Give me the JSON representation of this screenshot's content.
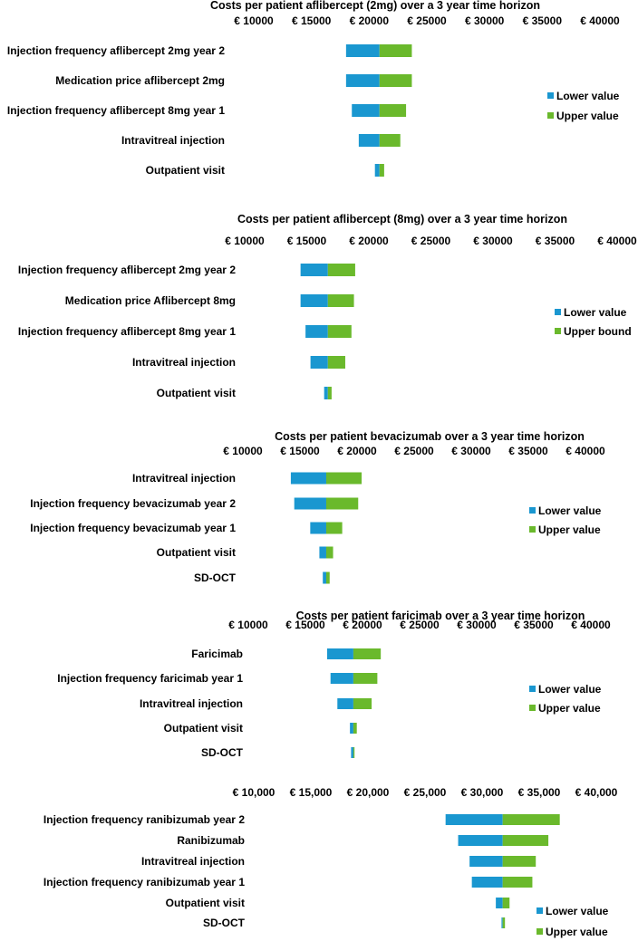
{
  "colors": {
    "lower": "#1a97d0",
    "upper": "#6ab92c",
    "text": "#000000"
  },
  "chart_data": [
    {
      "type": "bar",
      "subtype": "tornado",
      "title": "Costs per patient aflibercept (2mg) over a 3 year time horizon",
      "xlabel": "",
      "ylabel": "",
      "axis_position": "top",
      "xlim": [
        10000,
        40000
      ],
      "ticks": [
        10000,
        15000,
        20000,
        25000,
        30000,
        35000,
        40000
      ],
      "tick_labels": [
        "€ 10000",
        "€ 15000",
        "€ 20000",
        "€ 25000",
        "€ 30000",
        "€ 35000",
        "€ 40000"
      ],
      "base_value": 20900,
      "categories": [
        "Injection frequency aflibercept 2mg year 2",
        "Medication price aflibercept 2mg",
        "Injection frequency aflibercept 8mg year 1",
        "Intravitreal injection",
        "Outpatient visit"
      ],
      "series": [
        {
          "name": "Lower value",
          "values": [
            18000,
            18000,
            18500,
            19100,
            20500
          ]
        },
        {
          "name": "Upper value",
          "values": [
            23700,
            23700,
            23200,
            22700,
            21300
          ]
        }
      ],
      "legend": [
        "Lower value",
        "Upper value"
      ],
      "legend_position": "right"
    },
    {
      "type": "bar",
      "subtype": "tornado",
      "title": "Costs per patient aflibercept (8mg) over a 3 year time horizon",
      "xlabel": "",
      "ylabel": "",
      "axis_position": "top",
      "xlim": [
        10000,
        40000
      ],
      "ticks": [
        10000,
        15000,
        20000,
        25000,
        30000,
        35000,
        40000
      ],
      "tick_labels": [
        "€ 10000",
        "€ 15000",
        "€ 20000",
        "€ 25000",
        "€ 30000",
        "€ 35000",
        "€ 40000"
      ],
      "base_value": 16700,
      "categories": [
        "Injection frequency aflibercept 2mg year 2",
        "Medication price Aflibercept 8mg",
        "Injection frequency aflibercept 8mg year 1",
        "Intravitreal injection",
        "Outpatient visit"
      ],
      "series": [
        {
          "name": "Lower value",
          "values": [
            14500,
            14500,
            14900,
            15300,
            16400
          ]
        },
        {
          "name": "Upper bound",
          "values": [
            18900,
            18800,
            18600,
            18100,
            17000
          ]
        }
      ],
      "legend": [
        "Lower value",
        "Upper bound"
      ],
      "legend_position": "right"
    },
    {
      "type": "bar",
      "subtype": "tornado",
      "title": "Costs per patient bevacizumab over a 3 year time horizon",
      "xlabel": "",
      "ylabel": "",
      "axis_position": "top",
      "xlim": [
        10000,
        40000
      ],
      "ticks": [
        10000,
        15000,
        20000,
        25000,
        30000,
        35000,
        40000
      ],
      "tick_labels": [
        "€ 10000",
        "€ 15000",
        "€ 20000",
        "€ 25000",
        "€ 30000",
        "€ 35000",
        "€ 40000"
      ],
      "base_value": 17300,
      "categories": [
        "Intravitreal injection",
        "Injection frequency bevacizumab year 2",
        "Injection frequency bevacizumab year 1",
        "Outpatient visit",
        "SD-OCT"
      ],
      "series": [
        {
          "name": "Lower value",
          "values": [
            14200,
            14500,
            15900,
            16700,
            17000
          ]
        },
        {
          "name": "Upper value",
          "values": [
            20400,
            20100,
            18700,
            17900,
            17600
          ]
        }
      ],
      "legend": [
        "Lower value",
        "Upper value"
      ],
      "legend_position": "right"
    },
    {
      "type": "bar",
      "subtype": "tornado",
      "title": "Costs per patient faricimab over a 3 year time horizon",
      "xlabel": "",
      "ylabel": "",
      "axis_position": "top",
      "xlim": [
        10000,
        40000
      ],
      "ticks": [
        10000,
        15000,
        20000,
        25000,
        30000,
        35000,
        40000
      ],
      "tick_labels": [
        "€ 10000",
        "€ 15000",
        "€ 20000",
        "€ 25000",
        "€ 30000",
        "€ 35000",
        "€ 40000"
      ],
      "base_value": 19200,
      "categories": [
        "Faricimab",
        "Injection frequency faricimab year 1",
        "Intravitreal injection",
        "Outpatient visit",
        "SD-OCT"
      ],
      "series": [
        {
          "name": "Lower value",
          "values": [
            16900,
            17200,
            17800,
            18900,
            19000
          ]
        },
        {
          "name": "Upper value",
          "values": [
            21600,
            21300,
            20800,
            19500,
            19300
          ]
        }
      ],
      "legend": [
        "Lower value",
        "Upper value"
      ],
      "legend_position": "right"
    },
    {
      "type": "bar",
      "subtype": "tornado",
      "title": "",
      "xlabel": "",
      "ylabel": "",
      "axis_position": "top",
      "xlim": [
        10000,
        40000
      ],
      "ticks": [
        10000,
        15000,
        20000,
        25000,
        30000,
        35000,
        40000
      ],
      "tick_labels": [
        "€ 10,000",
        "€ 15,000",
        "€ 20,000",
        "€ 25,000",
        "€ 30,000",
        "€ 35,000",
        "€ 40,000"
      ],
      "base_value": 31800,
      "categories": [
        "Injection frequency ranibizumab year 2",
        "Ranibizumab",
        "Intravitreal injection",
        "Injection frequency ranibizumab year 1",
        "Outpatient visit",
        "SD-OCT"
      ],
      "series": [
        {
          "name": "Lower value",
          "values": [
            26800,
            27900,
            28900,
            29100,
            31200,
            31700
          ]
        },
        {
          "name": "Upper value",
          "values": [
            36800,
            35800,
            34700,
            34400,
            32400,
            32000
          ]
        }
      ],
      "legend": [
        "Lower value",
        "Upper value"
      ],
      "legend_position": "bottom-right"
    }
  ]
}
